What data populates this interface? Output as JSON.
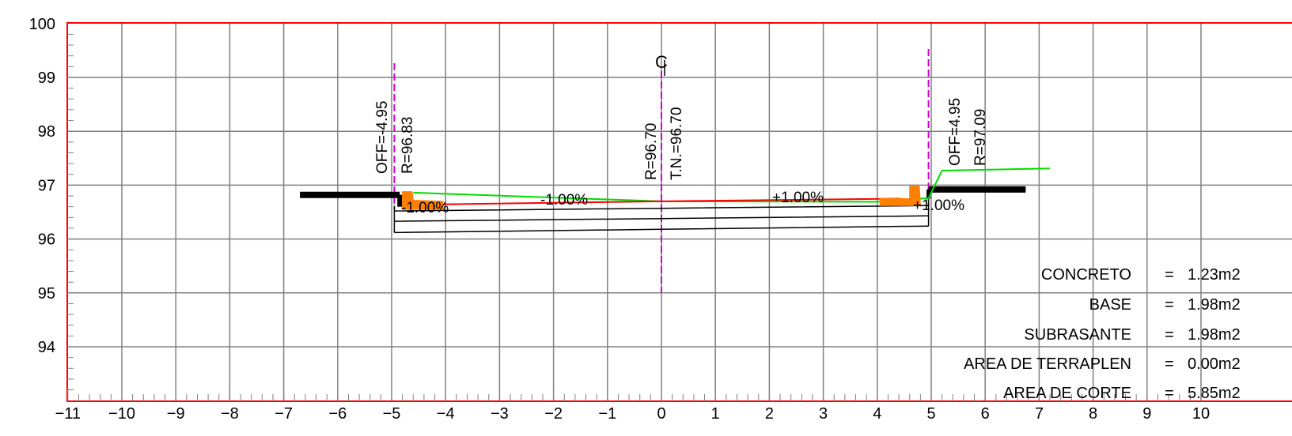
{
  "chart_data": {
    "type": "diagram",
    "xlim": [
      -11,
      10
    ],
    "ylim": [
      93,
      100
    ],
    "x_ticks": [
      "-11",
      "-10",
      "-9",
      "-8",
      "-7",
      "-6",
      "-5",
      "-4",
      "-3",
      "-2",
      "-1",
      "0",
      "1",
      "2",
      "3",
      "4",
      "5",
      "6",
      "7",
      "8",
      "9",
      "10"
    ],
    "y_ticks": [
      "100",
      "99",
      "98",
      "97",
      "96",
      "95",
      "94"
    ],
    "centerline_symbol": "C",
    "labels": {
      "left_offset": "OFF=-4.95",
      "left_elev": "R=96.83",
      "center_elev": "R=96.70",
      "center_tn": "T.N.=96.70",
      "right_offset": "OFF=4.95",
      "right_elev": "R=97.09"
    },
    "slopes": {
      "left_outer": "-1.00%",
      "left_inner": "-1.00%",
      "right_inner": "+1.00%",
      "right_outer": "+1.00%"
    },
    "quantities": [
      {
        "label": "CONCRETO",
        "value": "1.23m2"
      },
      {
        "label": "BASE",
        "value": "1.98m2"
      },
      {
        "label": "SUBRASANTE",
        "value": "1.98m2"
      },
      {
        "label": "AREA DE TERRAPLEN",
        "value": "0.00m2"
      },
      {
        "label": "AREA DE CORTE",
        "value": "5.85m2"
      }
    ],
    "design_profile": [
      [
        -4.6,
        96.62
      ],
      [
        -4.4,
        96.64
      ],
      [
        0,
        96.7
      ],
      [
        4.4,
        96.75
      ],
      [
        4.6,
        96.73
      ]
    ],
    "ground_profile": [
      [
        -4.6,
        96.86
      ],
      [
        -4.3,
        96.85
      ],
      [
        0,
        96.7
      ],
      [
        4.0,
        96.69
      ],
      [
        4.95,
        96.76
      ],
      [
        5.2,
        97.27
      ],
      [
        7.2,
        97.31
      ]
    ],
    "pavement_bottom": [
      [
        -4.95,
        96.52
      ],
      [
        0,
        96.57
      ],
      [
        4.95,
        96.62
      ]
    ],
    "base_bottom": [
      [
        -4.95,
        96.33
      ],
      [
        0,
        96.38
      ],
      [
        4.95,
        96.43
      ]
    ],
    "subgrade_bottom": [
      [
        -4.95,
        96.12
      ],
      [
        0,
        96.18
      ],
      [
        4.95,
        96.24
      ]
    ],
    "left_sidewalk": [
      [
        -6.7,
        96.82
      ],
      [
        -4.85,
        96.82
      ]
    ],
    "right_sidewalk": [
      [
        4.95,
        96.92
      ],
      [
        6.75,
        96.92
      ]
    ],
    "colors": {
      "border": "#ff0000",
      "grid": "#808080",
      "design": "#ff0000",
      "ground": "#00dd00",
      "offset_lines": "#cc00cc",
      "curb": "#ff8000",
      "structure": "#000000"
    }
  }
}
